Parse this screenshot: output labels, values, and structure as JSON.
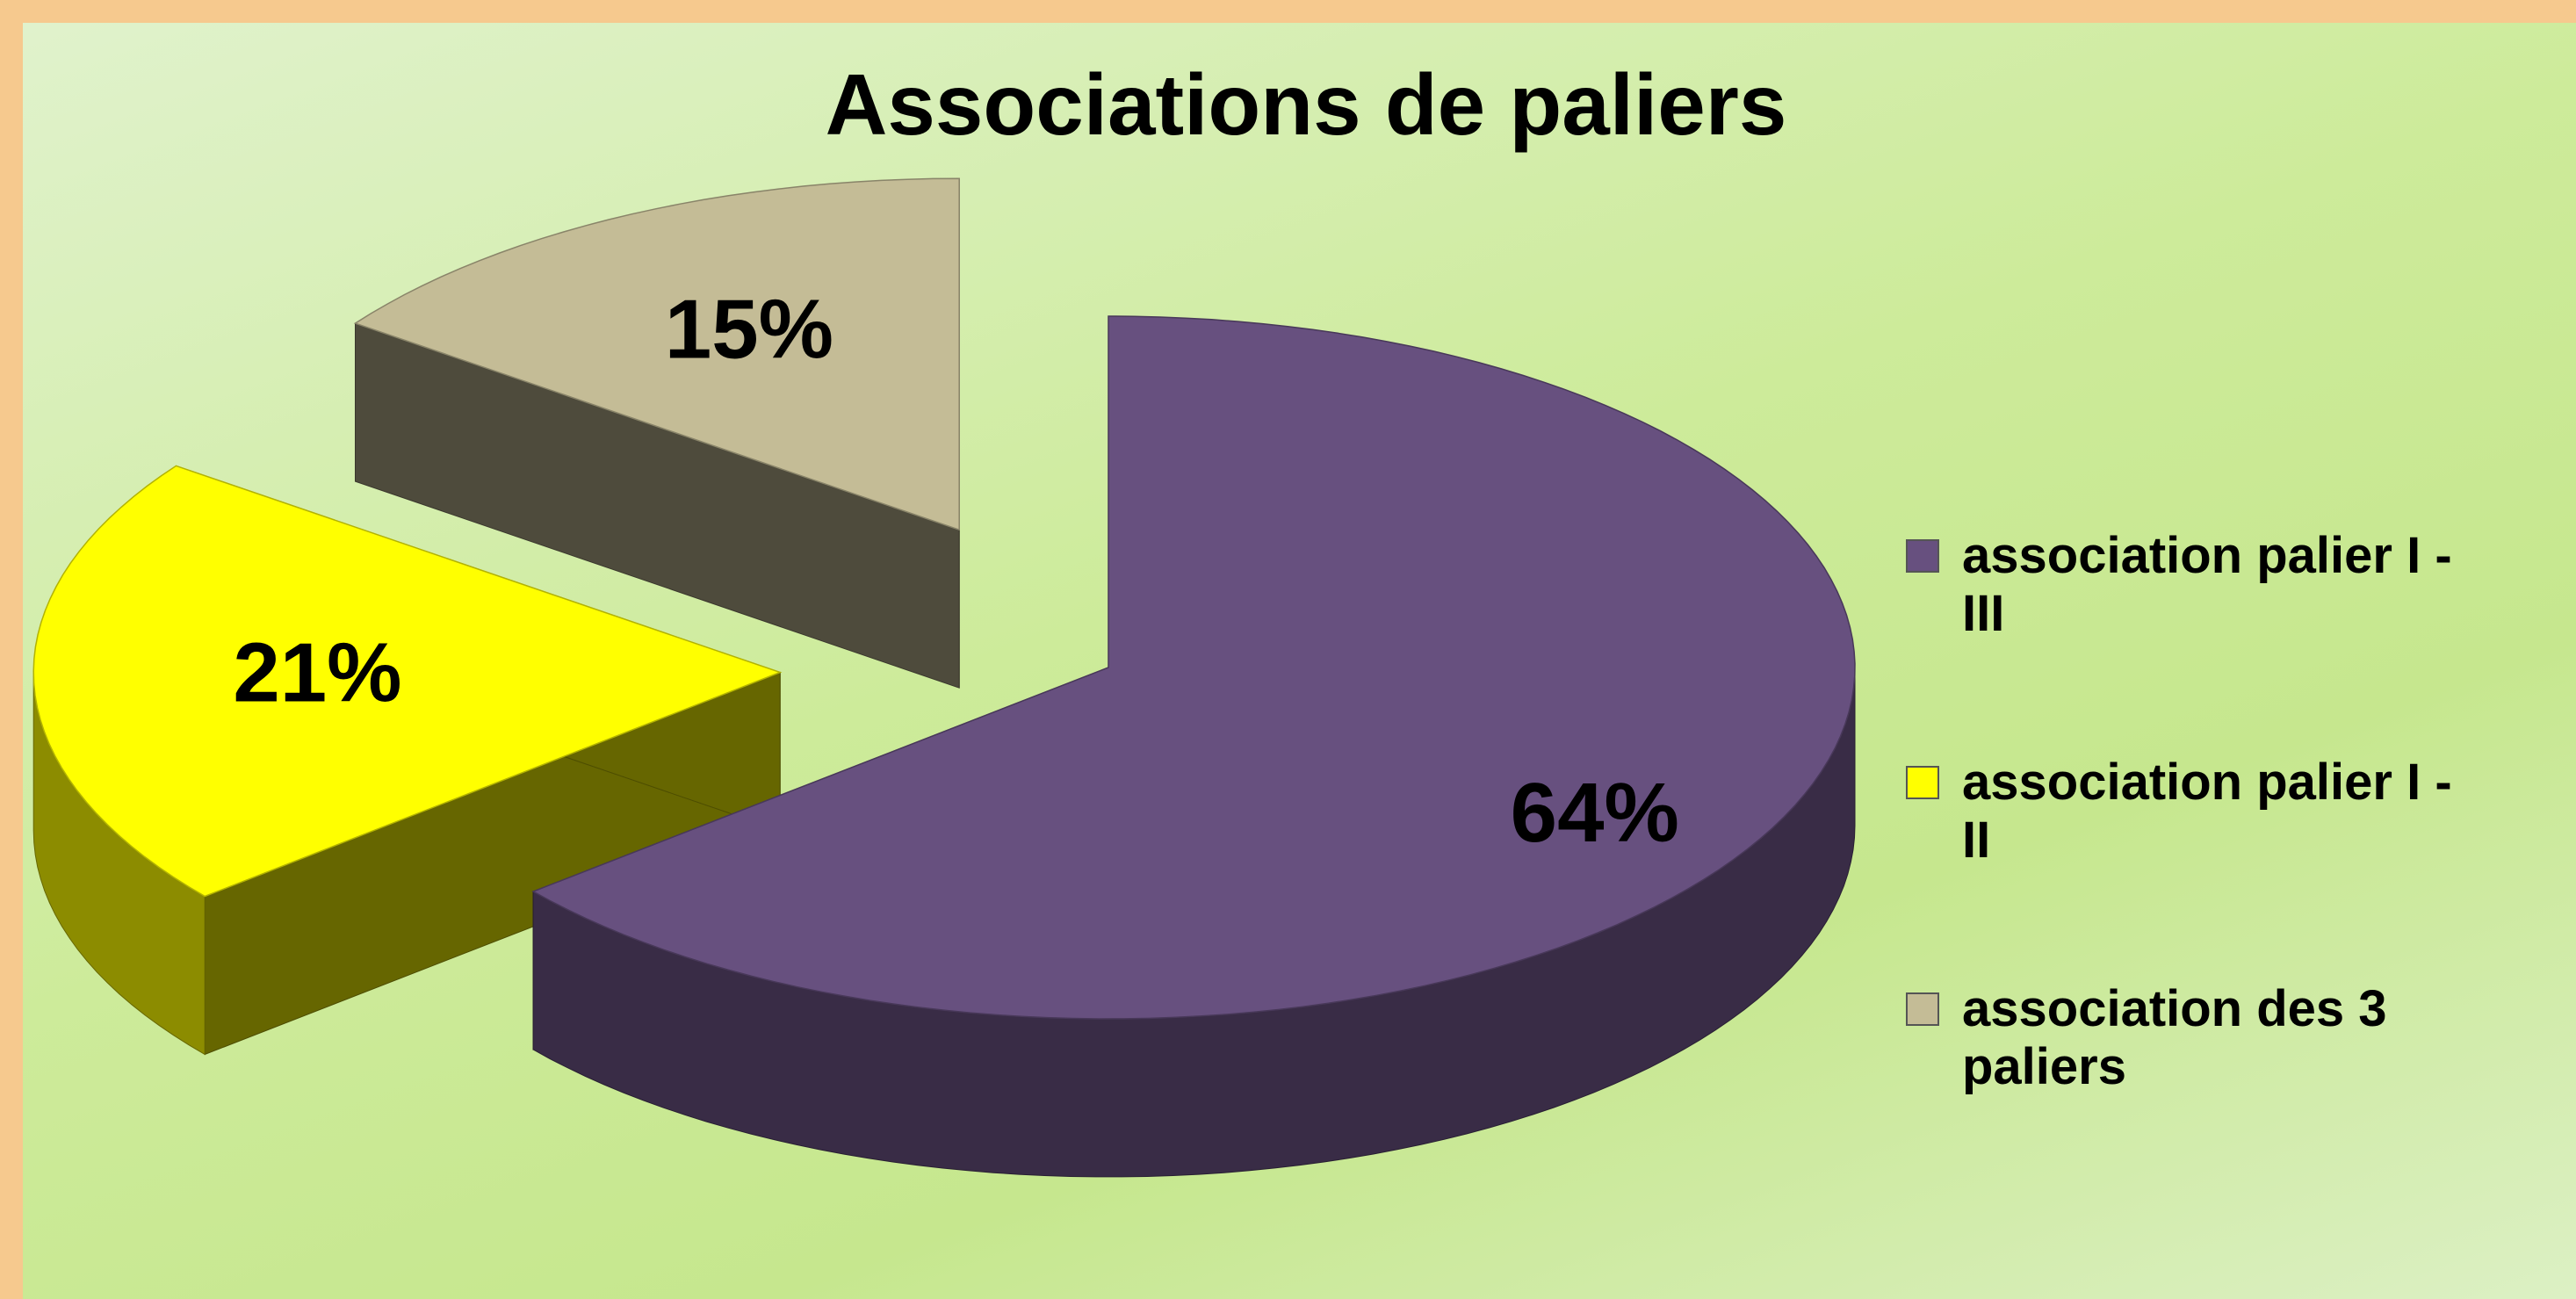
{
  "chart_data": {
    "type": "pie3d",
    "title": "Associations de paliers",
    "categories": [
      "association palier I - III",
      "association palier I - II",
      "association des 3 paliers"
    ],
    "values": [
      64,
      21,
      15
    ],
    "value_labels": [
      "64%",
      "21%",
      "15%"
    ],
    "colors": [
      "#67507f",
      "#ffff00",
      "#c4bc96"
    ],
    "legend": "right"
  }
}
